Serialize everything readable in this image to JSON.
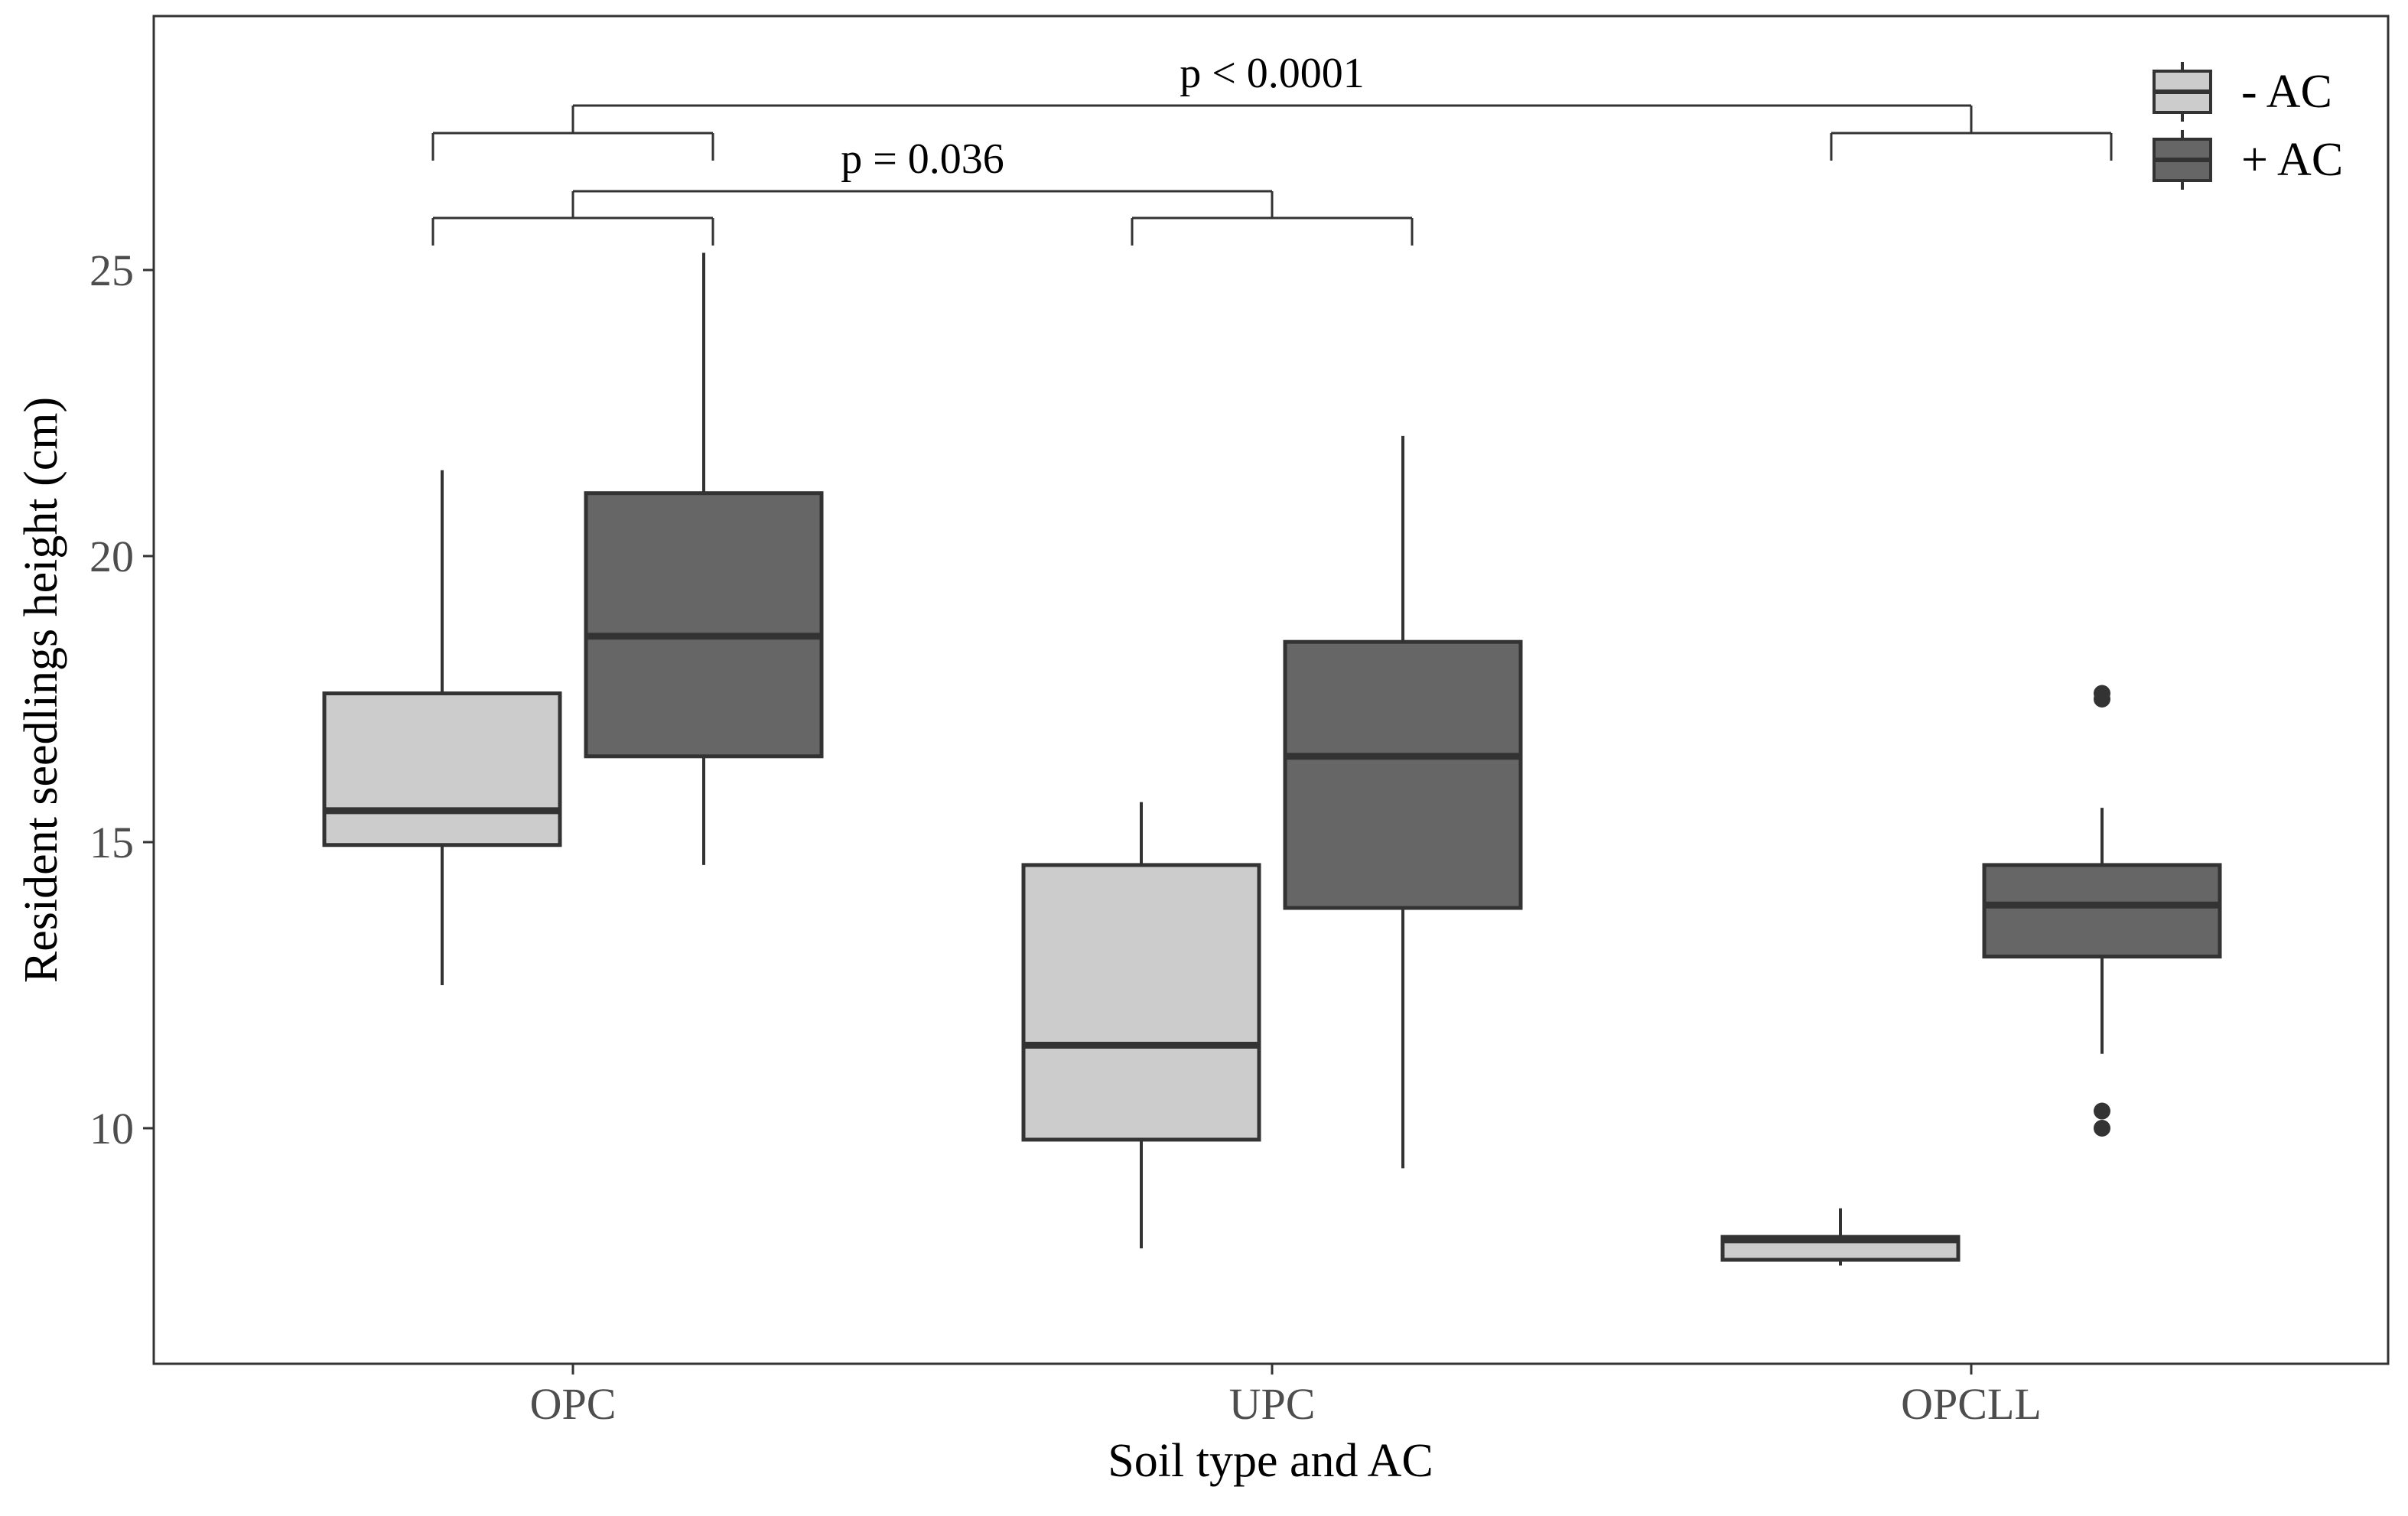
{
  "chart_data": {
    "type": "boxplot",
    "xlabel": "Soil type and AC",
    "ylabel": "Resident seedlings height (cm)",
    "categories": [
      "OPC",
      "UPC",
      "OPCLL"
    ],
    "ylim": [
      5.8,
      29.4
    ],
    "yticks": [
      10,
      15,
      20,
      25
    ],
    "grid": false,
    "legend_position": "top-right",
    "series": [
      {
        "name": "- AC",
        "fill": "#cccccc",
        "boxes": [
          {
            "category": "OPC",
            "whisker_low": 12.5,
            "q1": 14.95,
            "median": 15.55,
            "q3": 17.6,
            "whisker_high": 21.5,
            "outliers": []
          },
          {
            "category": "UPC",
            "whisker_low": 7.9,
            "q1": 9.8,
            "median": 11.45,
            "q3": 14.6,
            "whisker_high": 15.7,
            "outliers": []
          },
          {
            "category": "OPCLL",
            "whisker_low": 7.6,
            "q1": 7.7,
            "median": 8.05,
            "q3": 8.1,
            "whisker_high": 8.6,
            "outliers": []
          }
        ]
      },
      {
        "name": "+ AC",
        "fill": "#666666",
        "boxes": [
          {
            "category": "OPC",
            "whisker_low": 14.6,
            "q1": 16.5,
            "median": 18.6,
            "q3": 21.1,
            "whisker_high": 25.3,
            "outliers": []
          },
          {
            "category": "UPC",
            "whisker_low": 9.3,
            "q1": 13.85,
            "median": 16.5,
            "q3": 18.5,
            "whisker_high": 22.1,
            "outliers": []
          },
          {
            "category": "OPCLL",
            "whisker_low": 11.3,
            "q1": 13.0,
            "median": 13.9,
            "q3": 14.6,
            "whisker_high": 15.6,
            "outliers": [
              17.5,
              17.6,
              10.0,
              10.3
            ]
          }
        ]
      }
    ],
    "comparisons": [
      {
        "label": "p < 0.0001",
        "groups": [
          "OPC",
          "OPCLL"
        ],
        "level": 2
      },
      {
        "label": "p = 0.036",
        "groups": [
          "OPC",
          "UPC"
        ],
        "level": 1
      }
    ]
  }
}
